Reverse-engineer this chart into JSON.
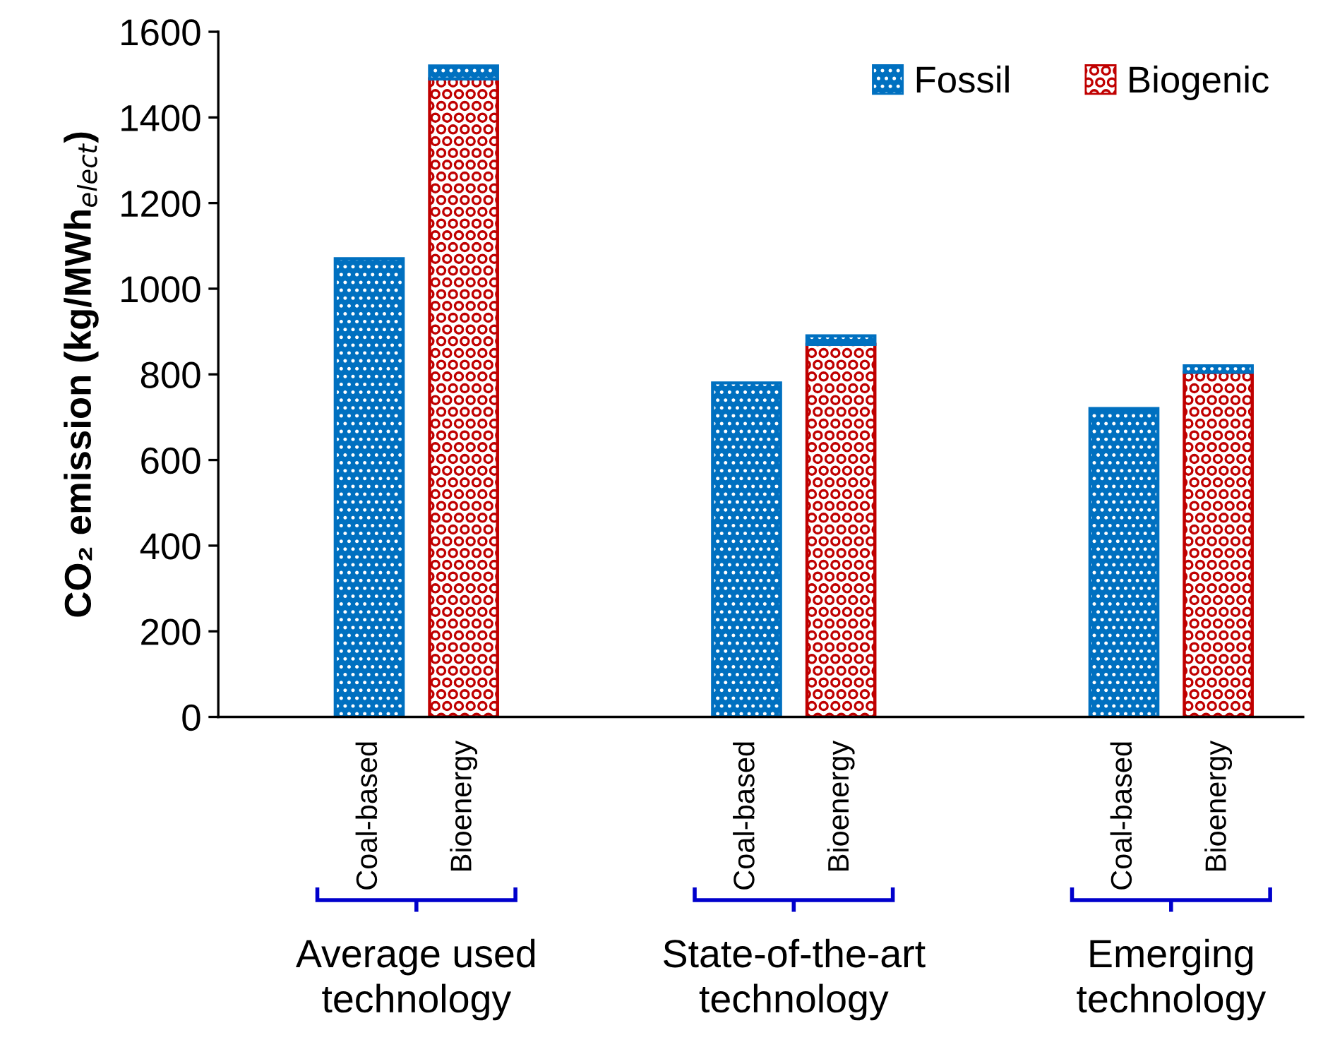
{
  "chart_data": {
    "type": "bar",
    "stacked": true,
    "ylabel": "CO₂ emission (kg/MWh$_{elect}$)",
    "categories": [
      "Coal-based",
      "Bioenergy",
      null,
      null,
      "Coal-based",
      "Bioenergy",
      null,
      null,
      "Coal-based",
      "Bioenergy"
    ],
    "series": [
      {
        "name": "Biogenic",
        "color": "#c00000",
        "values": [
          null,
          1490,
          null,
          null,
          null,
          870,
          null,
          null,
          null,
          805
        ]
      },
      {
        "name": "Fossil",
        "color": "#0070c0",
        "values": [
          1070,
          30,
          null,
          null,
          780,
          20,
          null,
          null,
          720,
          15
        ]
      }
    ],
    "annotations": [
      "Average used technology",
      "State-of-the-art technology",
      "Emerging technology"
    ],
    "ylim": [
      0,
      1600
    ],
    "yticks": [
      0,
      200,
      400,
      600,
      800,
      1000,
      1200,
      1400,
      1600
    ],
    "legend": "top right",
    "grid": false
  }
}
